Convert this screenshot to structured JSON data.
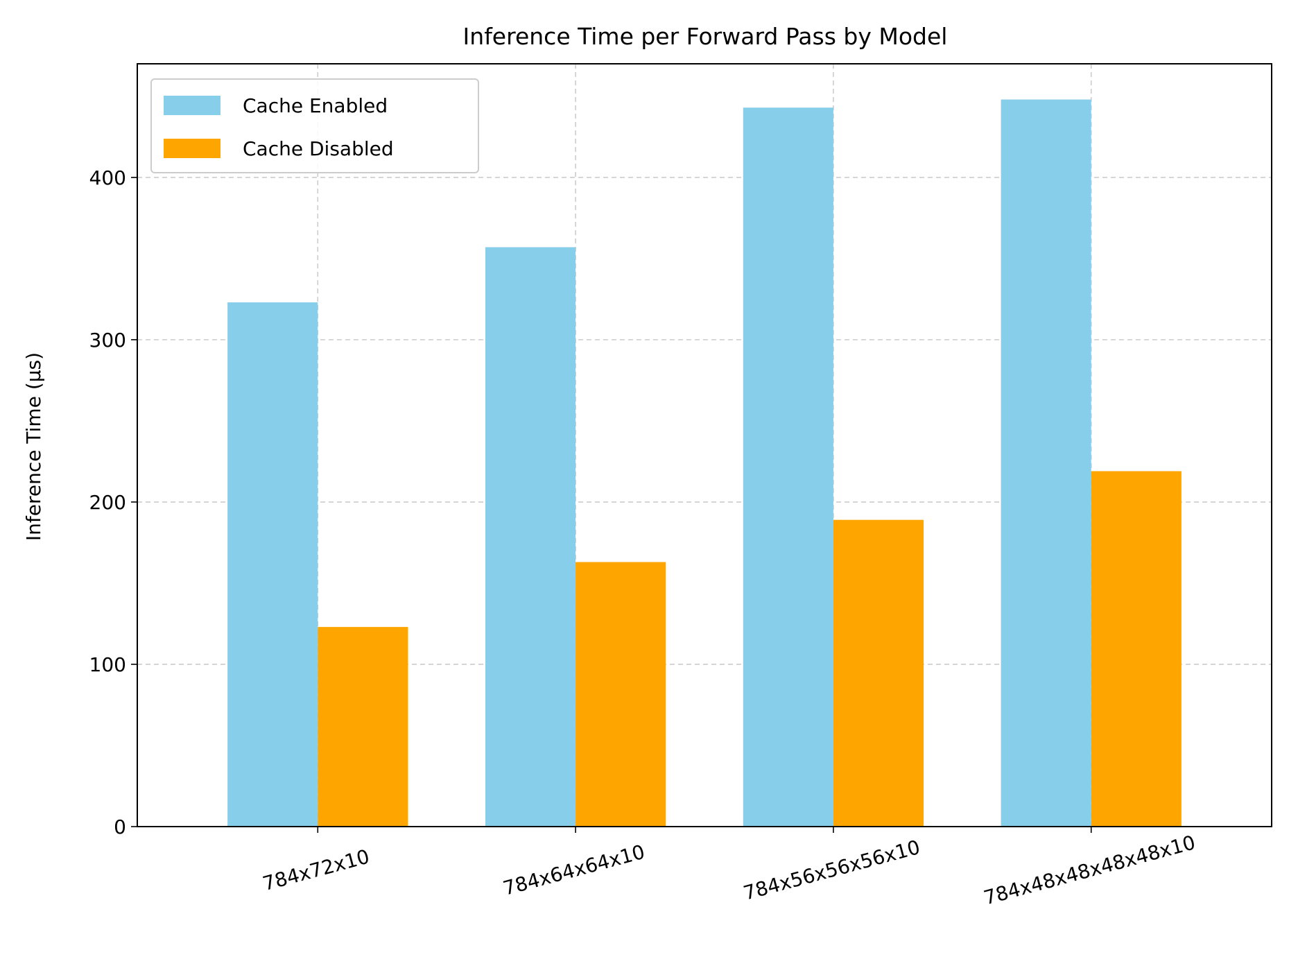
{
  "chart_data": {
    "type": "bar",
    "title": "Inference Time per Forward Pass by Model",
    "xlabel": "",
    "ylabel": "Inference Time (µs)",
    "categories": [
      "784x72x10",
      "784x64x64x10",
      "784x56x56x56x10",
      "784x48x48x48x48x10"
    ],
    "series": [
      {
        "name": "Cache Enabled",
        "color": "#87ceeb",
        "values": [
          323,
          357,
          443,
          448
        ]
      },
      {
        "name": "Cache Disabled",
        "color": "#ffa500",
        "values": [
          123,
          163,
          189,
          219
        ]
      }
    ],
    "ylim": [
      0,
      470
    ],
    "yticks": [
      0,
      100,
      200,
      300,
      400
    ],
    "grid": true,
    "legend": "top-left",
    "xtick_rotation_deg": -15
  }
}
